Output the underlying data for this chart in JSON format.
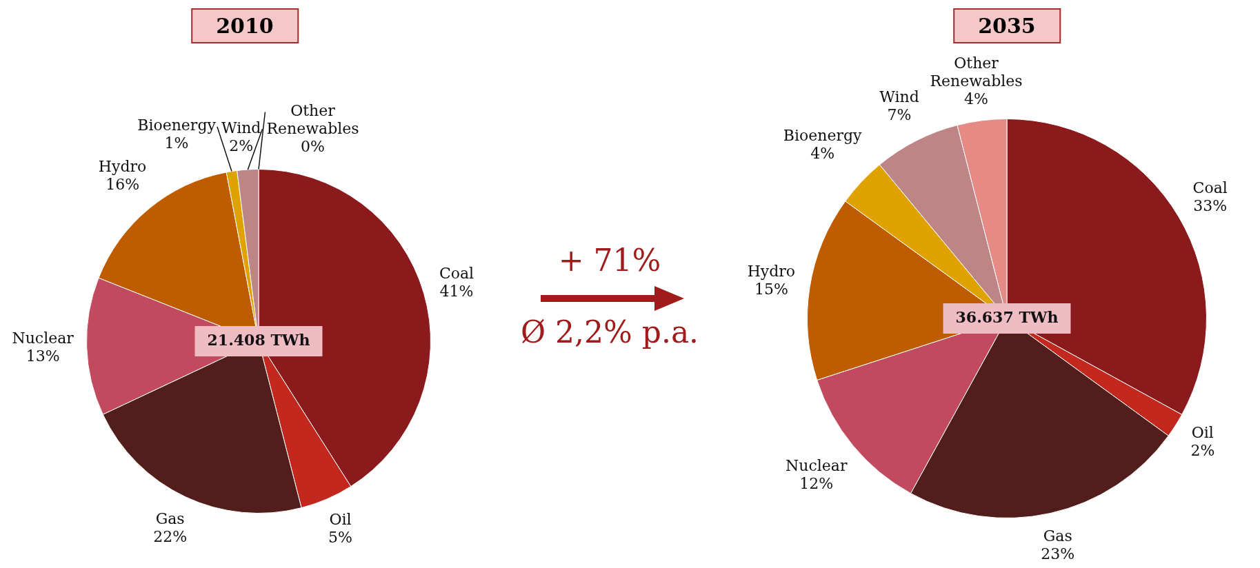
{
  "chart_data": [
    {
      "type": "pie",
      "title": "2010",
      "categories": [
        "Coal",
        "Oil",
        "Gas",
        "Nuclear",
        "Hydro",
        "Bioenergy",
        "Wind",
        "Other Renewables"
      ],
      "values": [
        41,
        5,
        22,
        13,
        16,
        1,
        2,
        0
      ],
      "value_labels": [
        "41%",
        "5%",
        "22%",
        "13%",
        "16%",
        "1%",
        "2%",
        "0%"
      ],
      "colors": [
        "#8b1a1c",
        "#c2281d",
        "#521e1c",
        "#c24a5e",
        "#c05c00",
        "#e0a200",
        "#bd8585",
        "#e58a85"
      ],
      "annotations": [
        "21.408 TWh",
        "+ 71%",
        "Ø 2,2% p.a."
      ],
      "legend": false
    },
    {
      "type": "pie",
      "title": "2035",
      "categories": [
        "Coal",
        "Oil",
        "Gas",
        "Nuclear",
        "Hydro",
        "Bioenergy",
        "Wind",
        "Other Renewables"
      ],
      "values": [
        33,
        2,
        23,
        12,
        15,
        4,
        7,
        4
      ],
      "value_labels": [
        "33%",
        "2%",
        "23%",
        "12%",
        "15%",
        "4%",
        "7%",
        "4%"
      ],
      "colors": [
        "#8b1a1c",
        "#c2281d",
        "#521e1c",
        "#c24a5e",
        "#c05c00",
        "#e0a200",
        "#bd8585",
        "#e58a85"
      ],
      "annotations": [
        "36.637 TWh"
      ],
      "legend": false
    }
  ]
}
